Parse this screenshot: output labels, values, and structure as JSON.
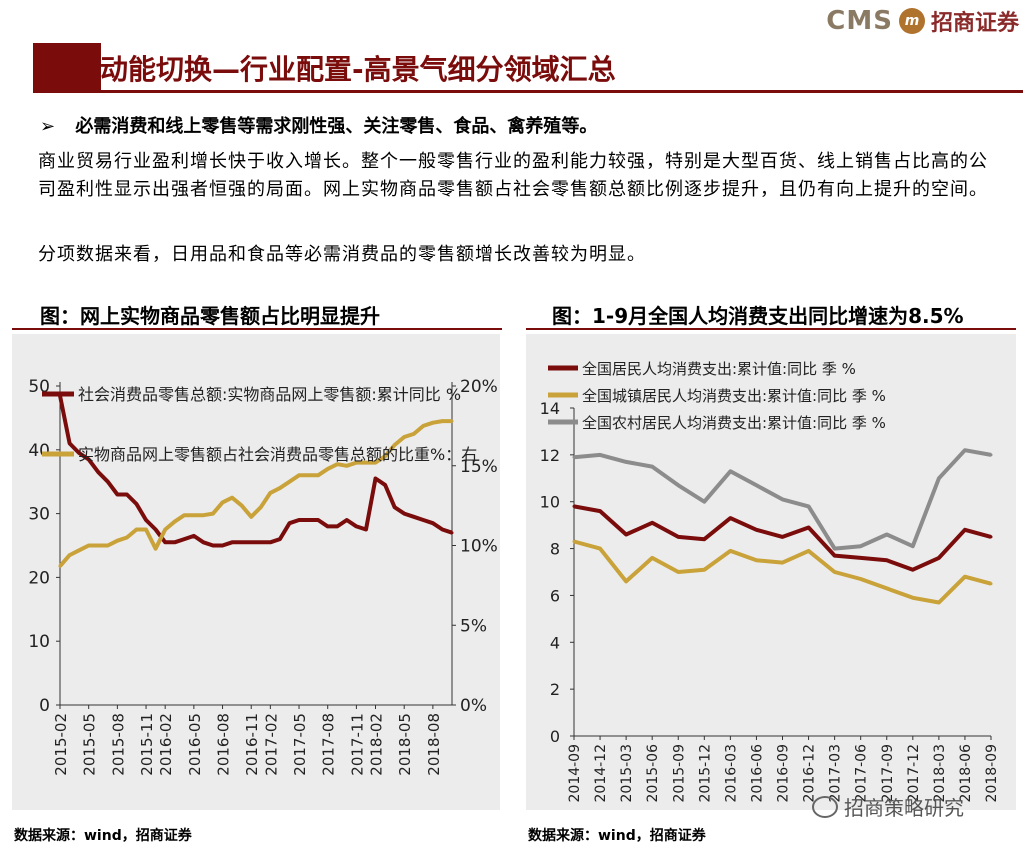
{
  "header": {
    "logo_text": "CMS",
    "logo_mark": "m",
    "logo_cn": "招商证券",
    "title": "动能切换—行业配置-高景气细分领域汇总",
    "accent": "#7a0c0c"
  },
  "bullet": {
    "icon": "arrow-bullet-icon",
    "marker": "➢",
    "text": "必需消费和线上零售等需求刚性强、关注零售、食品、禽养殖等。"
  },
  "paragraphs": [
    "商业贸易行业盈利增长快于收入增长。整个一般零售行业的盈利能力较强，特别是大型百货、线上销售占比高的公司盈利性显示出强者恒强的局面。网上实物商品零售额占社会零售额总额比例逐步提升，且仍有向上提升的空间。",
    "分项数据来看，日用品和食品等必需消费品的零售额增长改善较为明显。"
  ],
  "sources": [
    "数据来源：wind，招商证券",
    "数据来源：wind，招商证券"
  ],
  "watermark": "招商策略研究",
  "chart_data": [
    {
      "type": "line",
      "title": "图：网上实物商品零售额占比明显提升",
      "x": [
        "2015-02",
        "2015-03",
        "2015-04",
        "2015-05",
        "2015-06",
        "2015-07",
        "2015-08",
        "2015-09",
        "2015-10",
        "2015-11",
        "2015-12",
        "2016-02",
        "2016-03",
        "2016-04",
        "2016-05",
        "2016-06",
        "2016-07",
        "2016-08",
        "2016-09",
        "2016-10",
        "2016-11",
        "2016-12",
        "2017-02",
        "2017-03",
        "2017-04",
        "2017-05",
        "2017-06",
        "2017-07",
        "2017-08",
        "2017-09",
        "2017-10",
        "2017-11",
        "2017-12",
        "2018-02",
        "2018-03",
        "2018-04",
        "2018-05",
        "2018-06",
        "2018-07",
        "2018-08",
        "2018-09",
        "2018-10"
      ],
      "xticks": [
        "2015-02",
        "2015-05",
        "2015-08",
        "2015-11",
        "2016-02",
        "2016-05",
        "2016-08",
        "2016-11",
        "2017-02",
        "2017-05",
        "2017-08",
        "2017-11",
        "2018-02",
        "2018-05",
        "2018-08"
      ],
      "series": [
        {
          "name": "社会消费品零售总额:实物商品网上零售额:累计同比 %",
          "axis": "left",
          "color": "#7a0c0c",
          "values": [
            48.5,
            41,
            39.5,
            38.5,
            36.5,
            35,
            33,
            33,
            31.5,
            29,
            27.5,
            25.5,
            25.5,
            26,
            26.5,
            25.5,
            25,
            25,
            25.5,
            25.5,
            25.5,
            25.5,
            25.5,
            26,
            28.5,
            29,
            29,
            29,
            28,
            28,
            29,
            28,
            27.5,
            35.5,
            34.5,
            31,
            30,
            29.5,
            29,
            28.5,
            27.5,
            27
          ]
        },
        {
          "name": "实物商品网上零售额占社会消费品零售总额的比重%：右",
          "axis": "right",
          "color": "#c9a23a",
          "values": [
            8.7,
            9.4,
            9.7,
            10,
            10,
            10,
            10.3,
            10.5,
            11,
            11,
            9.8,
            11,
            11.5,
            11.9,
            11.9,
            11.9,
            12,
            12.7,
            13,
            12.5,
            11.8,
            12.4,
            13.3,
            13.6,
            14,
            14.4,
            14.4,
            14.4,
            14.8,
            15.1,
            15,
            15.2,
            15.2,
            15.2,
            15.6,
            16.3,
            16.8,
            17,
            17.5,
            17.7,
            17.8,
            17.8
          ]
        }
      ],
      "ylim_left": [
        0,
        50
      ],
      "yticks_left": [
        "0",
        "10",
        "20",
        "30",
        "40",
        "50"
      ],
      "ylim_right": [
        0,
        20
      ],
      "yticks_right": [
        "0%",
        "5%",
        "10%",
        "15%",
        "20%"
      ]
    },
    {
      "type": "line",
      "title": "图：1-9月全国人均消费支出同比增速为8.5%",
      "x": [
        "2014-09",
        "2014-12",
        "2015-03",
        "2015-06",
        "2015-09",
        "2015-12",
        "2016-03",
        "2016-06",
        "2016-09",
        "2016-12",
        "2017-03",
        "2017-06",
        "2017-09",
        "2017-12",
        "2018-03",
        "2018-06",
        "2018-09"
      ],
      "series": [
        {
          "name": "全国居民人均消费支出:累计值:同比  季  %",
          "color": "#7a0c0c",
          "values": [
            9.8,
            9.6,
            8.6,
            9.1,
            8.5,
            8.4,
            9.3,
            8.8,
            8.5,
            8.9,
            7.7,
            7.6,
            7.5,
            7.1,
            7.6,
            8.8,
            8.5
          ]
        },
        {
          "name": "全国城镇居民人均消费支出:累计值:同比  季  %",
          "color": "#c9a23a",
          "values": [
            8.3,
            8.0,
            6.6,
            7.6,
            7.0,
            7.1,
            7.9,
            7.5,
            7.4,
            7.9,
            7.0,
            6.7,
            6.3,
            5.9,
            5.7,
            6.8,
            6.5
          ]
        },
        {
          "name": "全国农村居民人均消费支出:累计值:同比  季  %",
          "color": "#8c8c8c",
          "values": [
            11.9,
            12.0,
            11.7,
            11.5,
            10.7,
            10.0,
            11.3,
            10.7,
            10.1,
            9.8,
            8.0,
            8.1,
            8.6,
            8.1,
            11.0,
            12.2,
            12.0
          ]
        }
      ],
      "ylim": [
        0,
        14
      ],
      "yticks": [
        "0",
        "2",
        "4",
        "6",
        "8",
        "10",
        "12",
        "14"
      ]
    }
  ]
}
